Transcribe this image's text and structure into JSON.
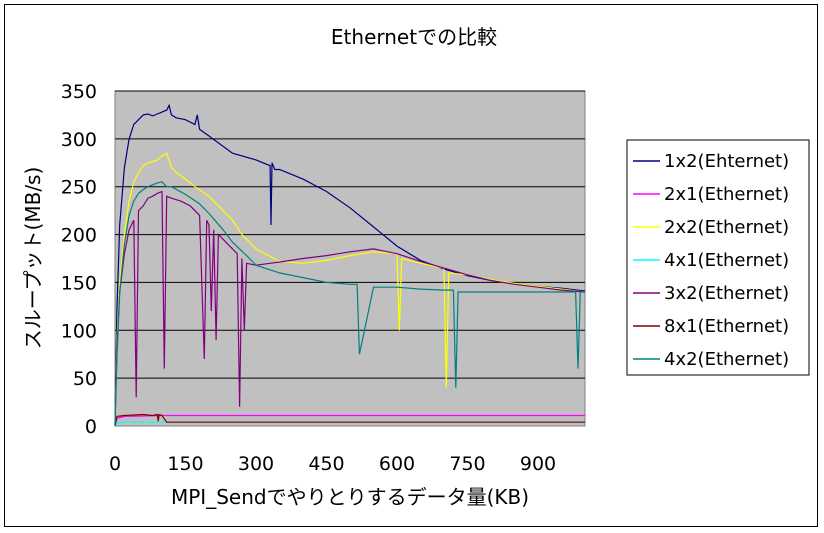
{
  "chart_data": {
    "type": "line",
    "title": "Ethernetでの比較",
    "xlabel": "MPI_Sendでやりとりするデータ量(KB)",
    "ylabel": "スループット(MB/s)",
    "xlim": [
      0,
      1000
    ],
    "ylim": [
      0,
      350
    ],
    "xticks": [
      0,
      150,
      300,
      450,
      600,
      750,
      900
    ],
    "yticks": [
      0,
      50,
      100,
      150,
      200,
      250,
      300,
      350
    ],
    "grid": true,
    "legend_position": "right",
    "plot_background": "#c0c0c0",
    "series": [
      {
        "name": "1x2(Ehternet)",
        "color": "#000080",
        "x": [
          0,
          4,
          10,
          20,
          30,
          40,
          50,
          60,
          70,
          80,
          90,
          100,
          110,
          115,
          120,
          130,
          150,
          170,
          175,
          180,
          200,
          250,
          300,
          330,
          332,
          334,
          340,
          350,
          400,
          450,
          500,
          550,
          600,
          650,
          700,
          750,
          800,
          850,
          900,
          950,
          1000
        ],
        "y": [
          0,
          120,
          210,
          270,
          300,
          315,
          320,
          325,
          326,
          324,
          326,
          328,
          330,
          335,
          325,
          322,
          320,
          315,
          325,
          310,
          303,
          285,
          278,
          272,
          210,
          275,
          268,
          268,
          258,
          245,
          228,
          208,
          188,
          173,
          164,
          157,
          152,
          149,
          146,
          144,
          141
        ]
      },
      {
        "name": "2x1(Ethernet)",
        "color": "#ff00ff",
        "x": [
          0,
          4,
          20,
          100,
          200,
          300,
          400,
          500,
          600,
          700,
          800,
          900,
          1000
        ],
        "y": [
          0,
          8,
          10,
          11,
          11,
          11,
          11,
          11,
          11,
          11,
          11,
          11,
          11
        ]
      },
      {
        "name": "2x2(Ethernet)",
        "color": "#ffff00",
        "x": [
          0,
          4,
          10,
          20,
          30,
          40,
          50,
          60,
          70,
          80,
          90,
          100,
          110,
          120,
          130,
          150,
          170,
          200,
          230,
          250,
          270,
          300,
          350,
          400,
          450,
          500,
          550,
          600,
          605,
          610,
          650,
          700,
          705,
          710,
          750,
          800,
          850,
          900,
          950,
          1000
        ],
        "y": [
          0,
          90,
          150,
          200,
          235,
          255,
          265,
          272,
          275,
          276,
          278,
          282,
          285,
          270,
          265,
          258,
          250,
          240,
          225,
          215,
          200,
          185,
          172,
          170,
          173,
          178,
          182,
          180,
          100,
          175,
          170,
          165,
          40,
          160,
          158,
          153,
          149,
          146,
          143,
          140
        ]
      },
      {
        "name": "4x1(Ethernet)",
        "color": "#00ffff",
        "x": [
          0,
          4,
          20,
          100,
          200,
          300,
          400,
          500,
          600,
          700,
          800,
          900,
          1000
        ],
        "y": [
          0,
          3,
          4,
          4,
          4,
          4,
          4,
          4,
          4,
          4,
          4,
          4,
          4
        ]
      },
      {
        "name": "3x2(Ethernet)",
        "color": "#800080",
        "x": [
          0,
          4,
          10,
          20,
          30,
          40,
          45,
          50,
          60,
          70,
          80,
          90,
          100,
          105,
          110,
          120,
          140,
          160,
          180,
          190,
          195,
          200,
          205,
          210,
          215,
          220,
          240,
          260,
          265,
          270,
          275,
          280,
          300,
          330,
          360,
          400,
          450,
          500,
          550,
          600,
          650,
          700,
          750,
          800,
          850,
          900,
          950,
          1000
        ],
        "y": [
          0,
          80,
          140,
          180,
          205,
          215,
          30,
          225,
          230,
          238,
          240,
          243,
          245,
          60,
          240,
          238,
          235,
          230,
          220,
          70,
          215,
          210,
          120,
          205,
          90,
          200,
          190,
          180,
          20,
          175,
          100,
          170,
          168,
          170,
          172,
          175,
          178,
          182,
          185,
          180,
          172,
          165,
          158,
          152,
          148,
          145,
          142,
          140
        ]
      },
      {
        "name": "8x1(Ethernet)",
        "color": "#800000",
        "x": [
          0,
          4,
          20,
          60,
          80,
          90,
          92,
          94,
          100,
          110,
          200,
          300,
          400,
          500,
          600,
          700,
          800,
          900,
          1000
        ],
        "y": [
          0,
          10,
          11,
          12,
          11,
          12,
          5,
          12,
          11,
          4,
          4,
          4,
          4,
          4,
          4,
          4,
          4,
          4,
          4
        ]
      },
      {
        "name": "4x2(Ethernet)",
        "color": "#008080",
        "x": [
          0,
          4,
          10,
          20,
          30,
          40,
          50,
          60,
          70,
          80,
          90,
          100,
          110,
          120,
          150,
          180,
          200,
          230,
          250,
          280,
          300,
          350,
          400,
          450,
          500,
          515,
          520,
          550,
          600,
          650,
          700,
          720,
          725,
          730,
          750,
          800,
          850,
          900,
          950,
          980,
          985,
          990,
          1000
        ],
        "y": [
          0,
          70,
          140,
          190,
          220,
          235,
          243,
          247,
          250,
          252,
          254,
          255,
          250,
          250,
          242,
          232,
          222,
          205,
          192,
          178,
          168,
          160,
          155,
          150,
          148,
          148,
          75,
          145,
          145,
          143,
          142,
          142,
          40,
          140,
          140,
          140,
          140,
          140,
          140,
          140,
          60,
          140,
          140
        ]
      }
    ]
  }
}
